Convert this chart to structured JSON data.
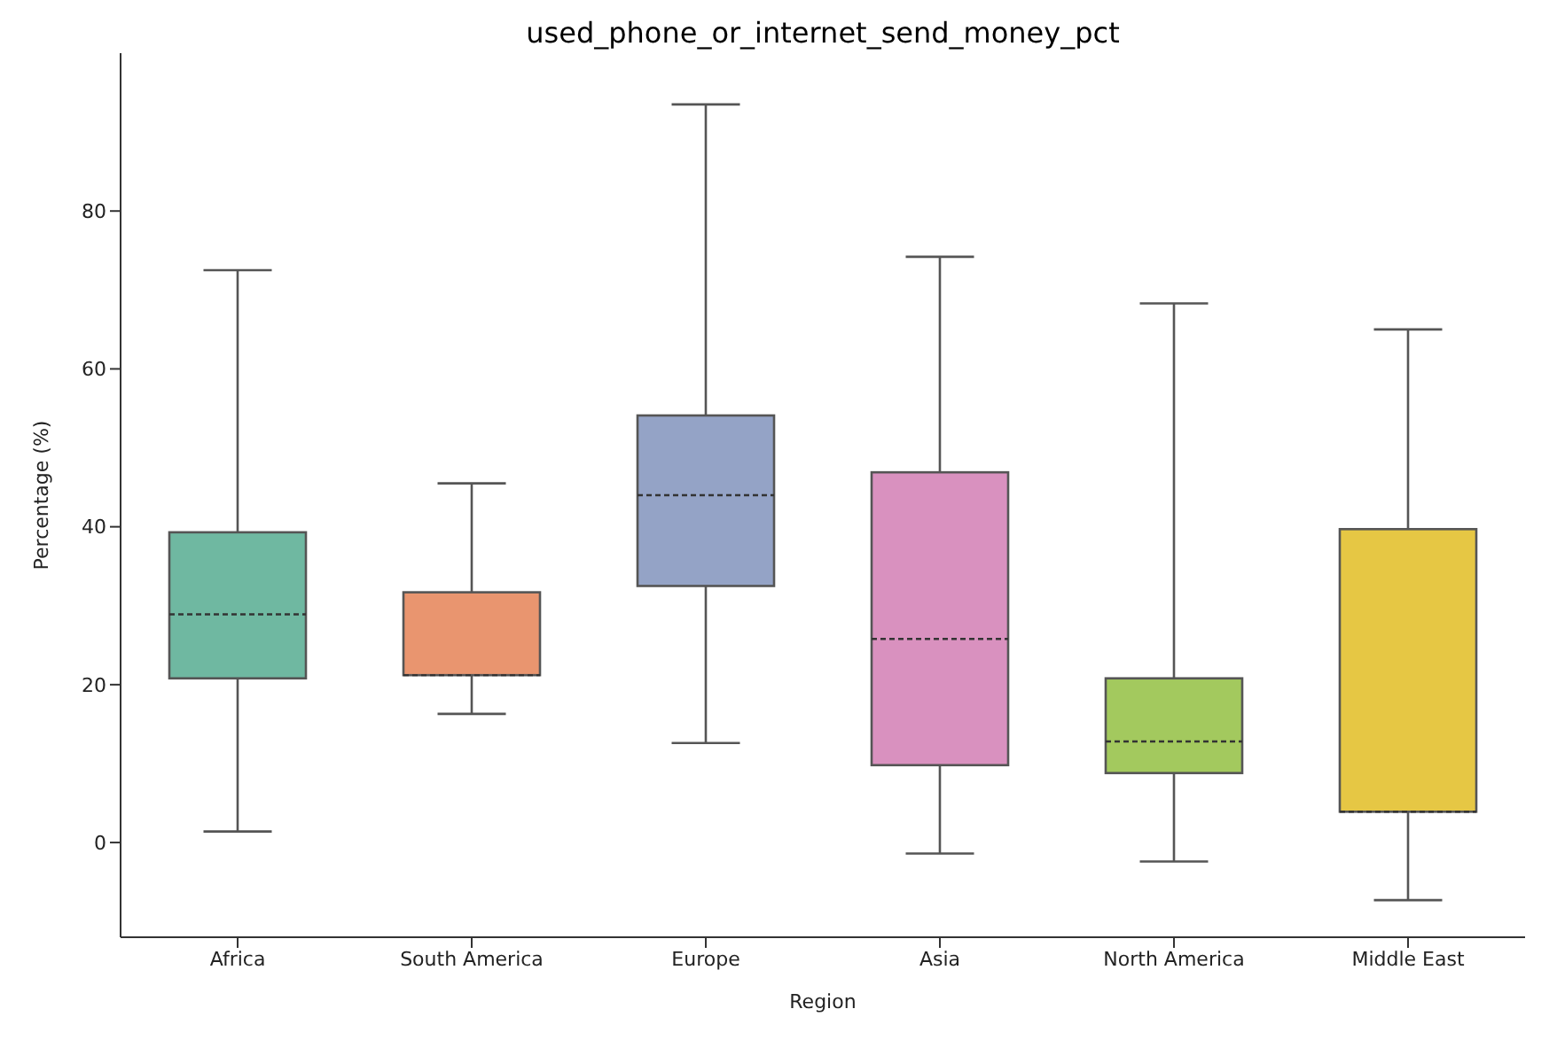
{
  "chart_data": {
    "type": "box",
    "title": "used_phone_or_internet_send_money_pct",
    "xlabel": "Region",
    "ylabel": "Percentage (%)",
    "categories": [
      "Africa",
      "South America",
      "Europe",
      "Asia",
      "North America",
      "Middle East"
    ],
    "colors": [
      "#6fb8a1",
      "#e9956f",
      "#94a3c6",
      "#d991bf",
      "#a3c95e",
      "#e6c744"
    ],
    "boxes": [
      {
        "low": 1.4,
        "q1": 20.8,
        "median": 28.9,
        "q3": 39.3,
        "high": 72.5
      },
      {
        "low": 16.3,
        "q1": 21.2,
        "median": 21.2,
        "q3": 31.7,
        "high": 45.5
      },
      {
        "low": 12.6,
        "q1": 32.5,
        "median": 44,
        "q3": 54.1,
        "high": 93.5
      },
      {
        "low": -1.4,
        "q1": 9.8,
        "median": 25.8,
        "q3": 46.9,
        "high": 74.2
      },
      {
        "low": -2.4,
        "q1": 8.8,
        "median": 12.8,
        "q3": 20.8,
        "high": 68.3
      },
      {
        "low": -7.3,
        "q1": 3.9,
        "median": 3.9,
        "q3": 39.7,
        "high": 65
      }
    ],
    "ylim": [
      -12,
      100
    ],
    "yticks": [
      0,
      20,
      40,
      60,
      80
    ],
    "grid": false,
    "legend": false
  }
}
